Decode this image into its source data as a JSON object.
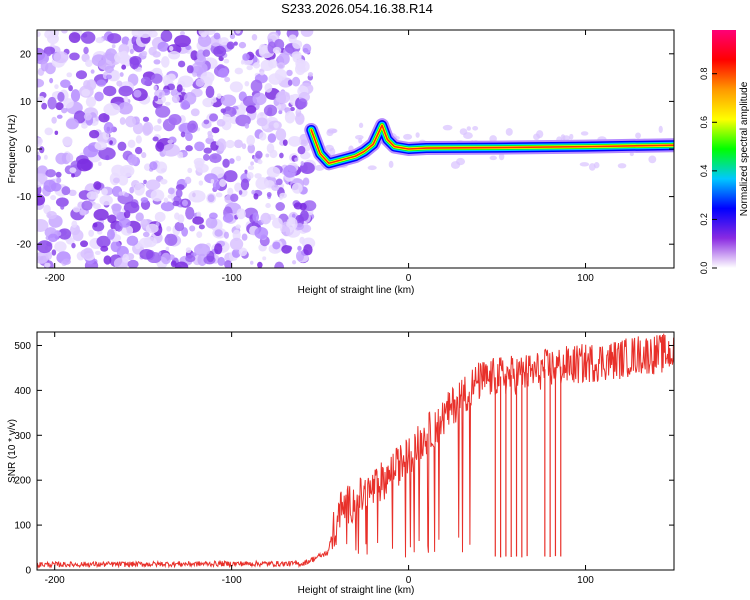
{
  "title": "S233.2026.054.16.38.R14",
  "chart_data": [
    {
      "type": "heatmap",
      "title": "S233.2026.054.16.38.R14",
      "xlabel": "Height of straight line (km)",
      "ylabel": "Frequency (Hz)",
      "xlim": [
        -210,
        150
      ],
      "ylim": [
        -25,
        25
      ],
      "xticks": [
        -200,
        -100,
        0,
        100
      ],
      "yticks": [
        -20,
        -10,
        0,
        10,
        20
      ],
      "noise_region_x": [
        -210,
        -55
      ],
      "signal_track": [
        {
          "x": -55,
          "y": 4
        },
        {
          "x": -50,
          "y": -1
        },
        {
          "x": -45,
          "y": -3
        },
        {
          "x": -40,
          "y": -2.5
        },
        {
          "x": -35,
          "y": -2
        },
        {
          "x": -30,
          "y": -1.5
        },
        {
          "x": -25,
          "y": -0.5
        },
        {
          "x": -20,
          "y": 1
        },
        {
          "x": -15,
          "y": 5
        },
        {
          "x": -12,
          "y": 2
        },
        {
          "x": -8,
          "y": 0.5
        },
        {
          "x": 0,
          "y": 0
        },
        {
          "x": 10,
          "y": 0.2
        },
        {
          "x": 50,
          "y": 0.3
        },
        {
          "x": 100,
          "y": 0.5
        },
        {
          "x": 150,
          "y": 0.8
        }
      ],
      "colorbar": {
        "label": "Normalized spectral amplitude",
        "range": [
          0,
          1
        ],
        "ticks": [
          "0.0",
          "0.2",
          "0.4",
          "0.6",
          "0.8"
        ],
        "colors": [
          "#ffffff",
          "#8a2be2",
          "#0000ff",
          "#00c8ff",
          "#00ff00",
          "#ffff00",
          "#ff9900",
          "#ff0000",
          "#ff0077"
        ]
      }
    },
    {
      "type": "line",
      "xlabel": "Height of straight line (km)",
      "ylabel": "SNR (10 * v/v)",
      "xlim": [
        -210,
        150
      ],
      "ylim": [
        0,
        530
      ],
      "xticks": [
        -200,
        -100,
        0,
        100
      ],
      "yticks": [
        0,
        100,
        200,
        300,
        400,
        500
      ],
      "line_color": "#e8302a",
      "series": [
        {
          "name": "SNR",
          "x": [
            -210,
            -150,
            -100,
            -60,
            -45,
            -40,
            -30,
            -20,
            -10,
            0,
            10,
            20,
            30,
            40,
            50,
            60,
            70,
            80,
            90,
            100,
            110,
            120,
            130,
            140,
            150
          ],
          "values": [
            12,
            13,
            14,
            14,
            40,
            130,
            155,
            180,
            215,
            255,
            300,
            340,
            390,
            420,
            430,
            435,
            440,
            450,
            455,
            460,
            465,
            470,
            480,
            480,
            485
          ]
        }
      ],
      "dropouts": [
        {
          "x": 49,
          "value": 30
        },
        {
          "x": 52,
          "value": 28
        },
        {
          "x": 55,
          "value": 30
        },
        {
          "x": 58,
          "value": 29
        },
        {
          "x": 61,
          "value": 30
        },
        {
          "x": 64,
          "value": 28
        },
        {
          "x": 67,
          "value": 31
        },
        {
          "x": 77,
          "value": 30
        },
        {
          "x": 80,
          "value": 29
        },
        {
          "x": 83,
          "value": 31
        },
        {
          "x": 86,
          "value": 30
        }
      ]
    }
  ]
}
